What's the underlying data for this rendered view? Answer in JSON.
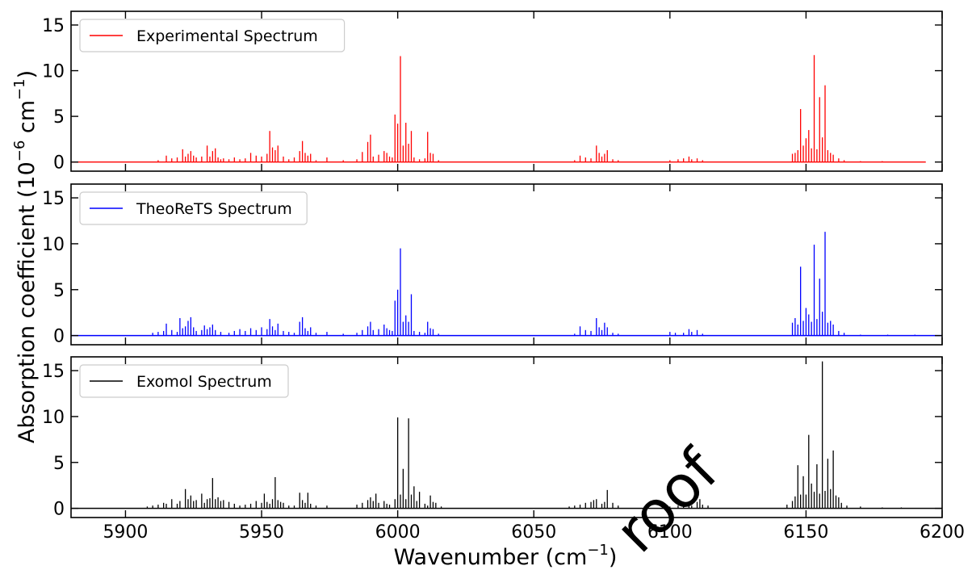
{
  "figure": {
    "ylabel_main": "Absorption coefficient (10",
    "ylabel_exp": "−6",
    "ylabel_mid": " cm",
    "ylabel_exp2": "−1",
    "ylabel_end": ")",
    "xlabel_main": "Wavenumber (cm",
    "xlabel_exp": "−1",
    "xlabel_end": ")",
    "watermark": "roof"
  },
  "chart_data": [
    {
      "type": "line",
      "name": "Experimental Spectrum",
      "color": "#ff0000",
      "xlim": [
        5880,
        6200
      ],
      "ylim": [
        -1,
        16.5
      ],
      "xticks": [
        5900,
        5950,
        6000,
        6050,
        6100,
        6150,
        6200
      ],
      "yticks": [
        0,
        5,
        10,
        15
      ],
      "xtick_labels": [
        "5900",
        "5950",
        "6000",
        "6050",
        "6100",
        "6150",
        "6200"
      ],
      "ytick_labels": [
        "0",
        "5",
        "10",
        "15"
      ],
      "legend": "upper-left",
      "x_range": [
        5880,
        6194
      ],
      "peaks": [
        [
          5912,
          0.2
        ],
        [
          5915,
          0.7
        ],
        [
          5917,
          0.4
        ],
        [
          5919,
          0.5
        ],
        [
          5921,
          1.4
        ],
        [
          5922,
          0.6
        ],
        [
          5923,
          0.9
        ],
        [
          5924,
          1.2
        ],
        [
          5925,
          0.7
        ],
        [
          5926,
          0.5
        ],
        [
          5928,
          0.6
        ],
        [
          5930,
          1.8
        ],
        [
          5931,
          0.6
        ],
        [
          5932,
          1.2
        ],
        [
          5933,
          1.5
        ],
        [
          5934,
          0.5
        ],
        [
          5935,
          0.3
        ],
        [
          5936,
          0.4
        ],
        [
          5938,
          0.3
        ],
        [
          5940,
          0.5
        ],
        [
          5942,
          0.3
        ],
        [
          5944,
          0.4
        ],
        [
          5946,
          1.0
        ],
        [
          5948,
          0.7
        ],
        [
          5950,
          0.6
        ],
        [
          5952,
          0.9
        ],
        [
          5953,
          3.4
        ],
        [
          5954,
          1.6
        ],
        [
          5955,
          1.3
        ],
        [
          5956,
          1.8
        ],
        [
          5958,
          0.6
        ],
        [
          5960,
          0.3
        ],
        [
          5962,
          0.5
        ],
        [
          5964,
          1.2
        ],
        [
          5965,
          2.3
        ],
        [
          5966,
          1.0
        ],
        [
          5967,
          0.7
        ],
        [
          5968,
          0.9
        ],
        [
          5970,
          0.2
        ],
        [
          5974,
          0.5
        ],
        [
          5980,
          0.2
        ],
        [
          5985,
          0.3
        ],
        [
          5987,
          1.1
        ],
        [
          5989,
          2.2
        ],
        [
          5990,
          3.0
        ],
        [
          5991,
          0.6
        ],
        [
          5993,
          0.8
        ],
        [
          5995,
          1.2
        ],
        [
          5996,
          1.0
        ],
        [
          5997,
          0.6
        ],
        [
          5998,
          0.5
        ],
        [
          5999,
          5.2
        ],
        [
          6000,
          4.2
        ],
        [
          6001,
          11.6
        ],
        [
          6002,
          1.8
        ],
        [
          6003,
          4.3
        ],
        [
          6004,
          2.0
        ],
        [
          6005,
          3.4
        ],
        [
          6006,
          0.5
        ],
        [
          6008,
          0.3
        ],
        [
          6010,
          0.4
        ],
        [
          6011,
          3.3
        ],
        [
          6012,
          1.0
        ],
        [
          6013,
          0.9
        ],
        [
          6015,
          0.2
        ],
        [
          6065,
          0.2
        ],
        [
          6067,
          0.7
        ],
        [
          6069,
          0.5
        ],
        [
          6071,
          0.4
        ],
        [
          6073,
          1.8
        ],
        [
          6074,
          1.0
        ],
        [
          6075,
          0.6
        ],
        [
          6076,
          0.9
        ],
        [
          6077,
          1.3
        ],
        [
          6079,
          0.3
        ],
        [
          6081,
          0.2
        ],
        [
          6100,
          0.2
        ],
        [
          6103,
          0.3
        ],
        [
          6105,
          0.4
        ],
        [
          6107,
          0.6
        ],
        [
          6108,
          0.3
        ],
        [
          6110,
          0.4
        ],
        [
          6112,
          0.2
        ],
        [
          6145,
          0.9
        ],
        [
          6146,
          1.0
        ],
        [
          6147,
          1.3
        ],
        [
          6148,
          5.8
        ],
        [
          6149,
          1.8
        ],
        [
          6150,
          2.6
        ],
        [
          6151,
          3.5
        ],
        [
          6152,
          1.5
        ],
        [
          6153,
          11.7
        ],
        [
          6154,
          1.4
        ],
        [
          6155,
          7.1
        ],
        [
          6156,
          2.7
        ],
        [
          6157,
          8.4
        ],
        [
          6158,
          1.3
        ],
        [
          6159,
          1.0
        ],
        [
          6160,
          0.8
        ],
        [
          6162,
          0.4
        ],
        [
          6164,
          0.2
        ],
        [
          6170,
          0.1
        ],
        [
          6178,
          0.1
        ]
      ]
    },
    {
      "type": "line",
      "name": "TheoReTS Spectrum",
      "color": "#0000ff",
      "xlim": [
        5880,
        6200
      ],
      "ylim": [
        -1,
        16.5
      ],
      "xticks": [
        5900,
        5950,
        6000,
        6050,
        6100,
        6150,
        6200
      ],
      "yticks": [
        0,
        5,
        10,
        15
      ],
      "xtick_labels": [
        "5900",
        "5950",
        "6000",
        "6050",
        "6100",
        "6150",
        "6200"
      ],
      "ytick_labels": [
        "0",
        "5",
        "10",
        "15"
      ],
      "legend": "upper-left",
      "x_range": [
        5880,
        6200
      ],
      "peaks": [
        [
          5910,
          0.3
        ],
        [
          5912,
          0.4
        ],
        [
          5914,
          0.5
        ],
        [
          5915,
          1.3
        ],
        [
          5917,
          0.6
        ],
        [
          5919,
          0.4
        ],
        [
          5920,
          1.9
        ],
        [
          5921,
          0.8
        ],
        [
          5922,
          1.0
        ],
        [
          5923,
          1.6
        ],
        [
          5924,
          2.0
        ],
        [
          5925,
          0.9
        ],
        [
          5926,
          0.5
        ],
        [
          5928,
          0.6
        ],
        [
          5929,
          1.1
        ],
        [
          5930,
          0.7
        ],
        [
          5931,
          0.9
        ],
        [
          5932,
          1.2
        ],
        [
          5933,
          0.6
        ],
        [
          5935,
          0.4
        ],
        [
          5938,
          0.3
        ],
        [
          5940,
          0.5
        ],
        [
          5942,
          0.7
        ],
        [
          5944,
          0.5
        ],
        [
          5946,
          0.8
        ],
        [
          5948,
          0.6
        ],
        [
          5950,
          0.9
        ],
        [
          5952,
          0.7
        ],
        [
          5953,
          1.8
        ],
        [
          5954,
          1.0
        ],
        [
          5955,
          0.6
        ],
        [
          5956,
          1.3
        ],
        [
          5958,
          0.5
        ],
        [
          5960,
          0.4
        ],
        [
          5962,
          0.3
        ],
        [
          5964,
          1.5
        ],
        [
          5965,
          2.0
        ],
        [
          5966,
          0.8
        ],
        [
          5967,
          0.5
        ],
        [
          5968,
          0.9
        ],
        [
          5970,
          0.3
        ],
        [
          5974,
          0.4
        ],
        [
          5980,
          0.2
        ],
        [
          5985,
          0.3
        ],
        [
          5987,
          0.6
        ],
        [
          5989,
          1.0
        ],
        [
          5990,
          1.5
        ],
        [
          5991,
          0.6
        ],
        [
          5993,
          0.7
        ],
        [
          5995,
          1.2
        ],
        [
          5996,
          0.8
        ],
        [
          5997,
          0.6
        ],
        [
          5998,
          0.5
        ],
        [
          5999,
          3.8
        ],
        [
          6000,
          5.0
        ],
        [
          6001,
          9.5
        ],
        [
          6002,
          1.5
        ],
        [
          6003,
          2.2
        ],
        [
          6004,
          1.5
        ],
        [
          6005,
          4.5
        ],
        [
          6006,
          0.5
        ],
        [
          6008,
          0.4
        ],
        [
          6010,
          0.3
        ],
        [
          6011,
          1.5
        ],
        [
          6012,
          0.8
        ],
        [
          6013,
          0.7
        ],
        [
          6015,
          0.2
        ],
        [
          6065,
          0.2
        ],
        [
          6067,
          1.0
        ],
        [
          6069,
          0.6
        ],
        [
          6071,
          0.5
        ],
        [
          6073,
          1.9
        ],
        [
          6074,
          0.9
        ],
        [
          6075,
          0.6
        ],
        [
          6076,
          1.4
        ],
        [
          6077,
          0.9
        ],
        [
          6079,
          0.3
        ],
        [
          6081,
          0.2
        ],
        [
          6100,
          0.4
        ],
        [
          6102,
          0.3
        ],
        [
          6105,
          0.3
        ],
        [
          6107,
          0.7
        ],
        [
          6108,
          0.4
        ],
        [
          6110,
          0.6
        ],
        [
          6112,
          0.2
        ],
        [
          6145,
          1.4
        ],
        [
          6146,
          1.9
        ],
        [
          6147,
          1.2
        ],
        [
          6148,
          7.5
        ],
        [
          6149,
          1.6
        ],
        [
          6150,
          3.0
        ],
        [
          6151,
          2.3
        ],
        [
          6152,
          1.5
        ],
        [
          6153,
          9.9
        ],
        [
          6154,
          1.8
        ],
        [
          6155,
          6.2
        ],
        [
          6156,
          2.6
        ],
        [
          6157,
          11.3
        ],
        [
          6158,
          1.4
        ],
        [
          6159,
          1.6
        ],
        [
          6160,
          1.2
        ],
        [
          6162,
          0.5
        ],
        [
          6164,
          0.3
        ],
        [
          6170,
          0.1
        ],
        [
          6180,
          0.1
        ],
        [
          6190,
          0.1
        ]
      ]
    },
    {
      "type": "line",
      "name": "Exomol Spectrum",
      "color": "#000000",
      "xlim": [
        5880,
        6200
      ],
      "ylim": [
        -1,
        16.5
      ],
      "xticks": [
        5900,
        5950,
        6000,
        6050,
        6100,
        6150,
        6200
      ],
      "yticks": [
        0,
        5,
        10,
        15
      ],
      "xtick_labels": [
        "5900",
        "5950",
        "6000",
        "6050",
        "6100",
        "6150",
        "6200"
      ],
      "ytick_labels": [
        "0",
        "5",
        "10",
        "15"
      ],
      "legend": "upper-left",
      "x_range": [
        5880,
        6200
      ],
      "peaks": [
        [
          5908,
          0.2
        ],
        [
          5910,
          0.3
        ],
        [
          5912,
          0.4
        ],
        [
          5914,
          0.6
        ],
        [
          5915,
          0.5
        ],
        [
          5917,
          1.0
        ],
        [
          5919,
          0.5
        ],
        [
          5920,
          0.8
        ],
        [
          5922,
          2.1
        ],
        [
          5923,
          1.0
        ],
        [
          5924,
          1.4
        ],
        [
          5925,
          0.8
        ],
        [
          5926,
          0.9
        ],
        [
          5928,
          1.6
        ],
        [
          5929,
          0.6
        ],
        [
          5930,
          1.0
        ],
        [
          5931,
          1.1
        ],
        [
          5932,
          3.3
        ],
        [
          5933,
          1.0
        ],
        [
          5934,
          1.2
        ],
        [
          5935,
          0.8
        ],
        [
          5936,
          0.9
        ],
        [
          5938,
          0.7
        ],
        [
          5940,
          0.5
        ],
        [
          5942,
          0.3
        ],
        [
          5944,
          0.4
        ],
        [
          5946,
          0.5
        ],
        [
          5948,
          0.8
        ],
        [
          5950,
          0.6
        ],
        [
          5951,
          1.6
        ],
        [
          5952,
          0.7
        ],
        [
          5953,
          0.5
        ],
        [
          5954,
          1.0
        ],
        [
          5955,
          3.4
        ],
        [
          5956,
          0.9
        ],
        [
          5957,
          0.7
        ],
        [
          5958,
          0.6
        ],
        [
          5960,
          0.3
        ],
        [
          5962,
          0.3
        ],
        [
          5964,
          1.7
        ],
        [
          5965,
          0.9
        ],
        [
          5966,
          0.6
        ],
        [
          5967,
          1.7
        ],
        [
          5968,
          0.5
        ],
        [
          5970,
          0.3
        ],
        [
          5974,
          0.3
        ],
        [
          5985,
          0.4
        ],
        [
          5987,
          0.6
        ],
        [
          5989,
          0.9
        ],
        [
          5990,
          1.2
        ],
        [
          5991,
          0.8
        ],
        [
          5992,
          1.6
        ],
        [
          5993,
          0.6
        ],
        [
          5995,
          0.8
        ],
        [
          5996,
          0.5
        ],
        [
          5997,
          0.4
        ],
        [
          5999,
          1.0
        ],
        [
          6000,
          9.9
        ],
        [
          6001,
          1.5
        ],
        [
          6002,
          4.3
        ],
        [
          6003,
          1.0
        ],
        [
          6004,
          9.8
        ],
        [
          6005,
          1.5
        ],
        [
          6006,
          2.4
        ],
        [
          6007,
          0.8
        ],
        [
          6008,
          1.8
        ],
        [
          6010,
          0.5
        ],
        [
          6011,
          0.3
        ],
        [
          6012,
          1.4
        ],
        [
          6013,
          0.7
        ],
        [
          6014,
          0.6
        ],
        [
          6016,
          0.2
        ],
        [
          6063,
          0.2
        ],
        [
          6065,
          0.3
        ],
        [
          6067,
          0.4
        ],
        [
          6069,
          0.6
        ],
        [
          6071,
          0.7
        ],
        [
          6072,
          0.9
        ],
        [
          6073,
          1.0
        ],
        [
          6075,
          0.5
        ],
        [
          6076,
          0.7
        ],
        [
          6077,
          2.0
        ],
        [
          6079,
          0.6
        ],
        [
          6081,
          0.3
        ],
        [
          6100,
          0.2
        ],
        [
          6103,
          0.3
        ],
        [
          6105,
          0.4
        ],
        [
          6107,
          0.5
        ],
        [
          6108,
          0.3
        ],
        [
          6110,
          0.7
        ],
        [
          6111,
          1.0
        ],
        [
          6112,
          0.4
        ],
        [
          6114,
          0.3
        ],
        [
          6143,
          0.4
        ],
        [
          6145,
          0.8
        ],
        [
          6146,
          1.3
        ],
        [
          6147,
          4.7
        ],
        [
          6148,
          1.5
        ],
        [
          6149,
          3.5
        ],
        [
          6150,
          1.5
        ],
        [
          6151,
          8.0
        ],
        [
          6152,
          2.7
        ],
        [
          6153,
          1.8
        ],
        [
          6154,
          4.8
        ],
        [
          6155,
          1.6
        ],
        [
          6156,
          16.0
        ],
        [
          6157,
          1.9
        ],
        [
          6158,
          5.4
        ],
        [
          6159,
          2.1
        ],
        [
          6160,
          6.3
        ],
        [
          6161,
          1.4
        ],
        [
          6162,
          1.2
        ],
        [
          6163,
          0.6
        ],
        [
          6165,
          0.3
        ],
        [
          6170,
          0.2
        ],
        [
          6178,
          0.1
        ],
        [
          6185,
          0.1
        ]
      ]
    }
  ]
}
